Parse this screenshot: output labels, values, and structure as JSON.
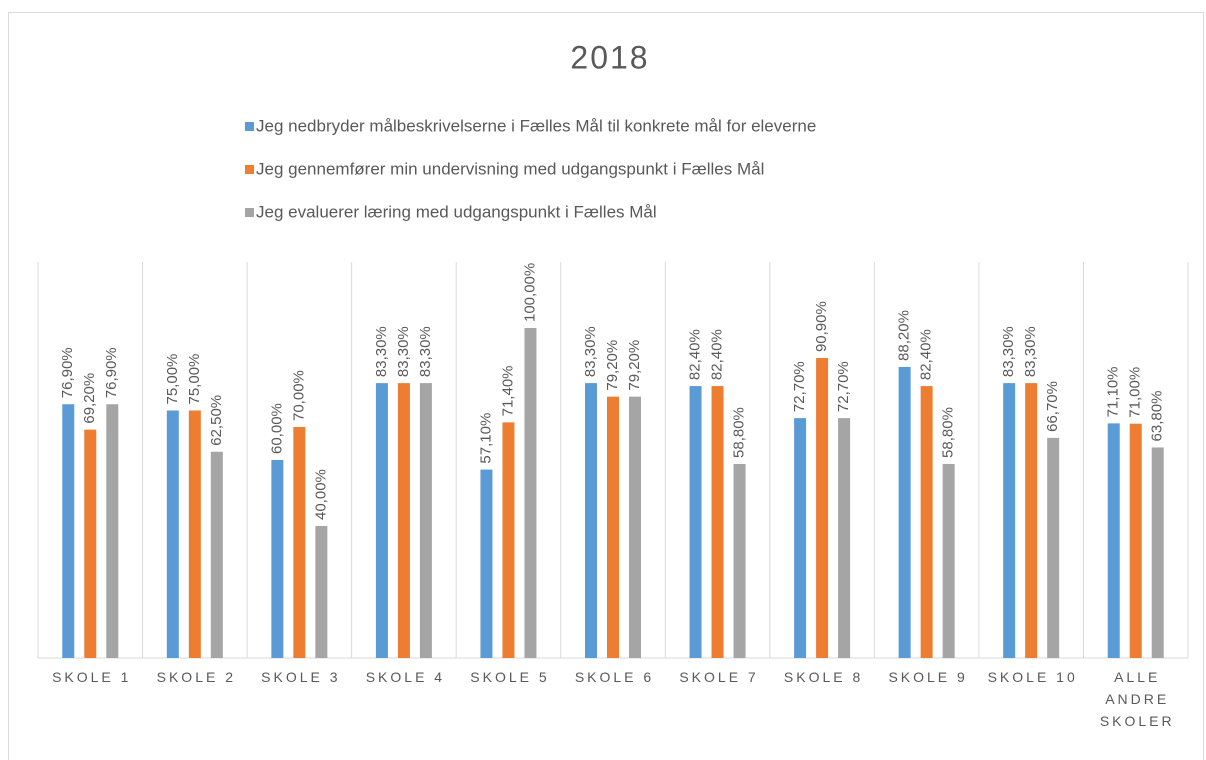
{
  "chart_data": {
    "type": "bar",
    "title": "2018",
    "categories": [
      "SKOLE 1",
      "SKOLE 2",
      "SKOLE 3",
      "SKOLE 4",
      "SKOLE 5",
      "SKOLE 6",
      "SKOLE 7",
      "SKOLE 8",
      "SKOLE 9",
      "SKOLE 10",
      "ALLE ANDRE SKOLER"
    ],
    "series": [
      {
        "name": "Jeg nedbryder målbeskrivelserne i Fælles Mål til konkrete mål for eleverne",
        "color": "#5b9bd5",
        "values": [
          76.9,
          75.0,
          60.0,
          83.3,
          57.1,
          83.3,
          82.4,
          72.7,
          88.2,
          83.3,
          71.1
        ],
        "value_labels": [
          "76,90%",
          "75,00%",
          "60,00%",
          "83,30%",
          "57,10%",
          "83,30%",
          "82,40%",
          "72,70%",
          "88,20%",
          "83,30%",
          "71,10%"
        ]
      },
      {
        "name": "Jeg gennemfører min undervisning med udgangspunkt i Fælles Mål",
        "color": "#ed7d31",
        "values": [
          69.2,
          75.0,
          70.0,
          83.3,
          71.4,
          79.2,
          82.4,
          90.9,
          82.4,
          83.3,
          71.0
        ],
        "value_labels": [
          "69,20%",
          "75,00%",
          "70,00%",
          "83,30%",
          "71,40%",
          "79,20%",
          "82,40%",
          "90,90%",
          "82,40%",
          "83,30%",
          "71,00%"
        ]
      },
      {
        "name": "Jeg evaluerer læring med udgangspunkt i Fælles Mål",
        "color": "#a5a5a5",
        "values": [
          76.9,
          62.5,
          40.0,
          83.3,
          100.0,
          79.2,
          58.8,
          72.7,
          58.8,
          66.7,
          63.8
        ],
        "value_labels": [
          "76,90%",
          "62,50%",
          "40,00%",
          "83,30%",
          "100,00%",
          "79,20%",
          "58,80%",
          "72,70%",
          "58,80%",
          "66,70%",
          "63,80%"
        ]
      }
    ],
    "ylim": [
      0,
      120
    ]
  }
}
